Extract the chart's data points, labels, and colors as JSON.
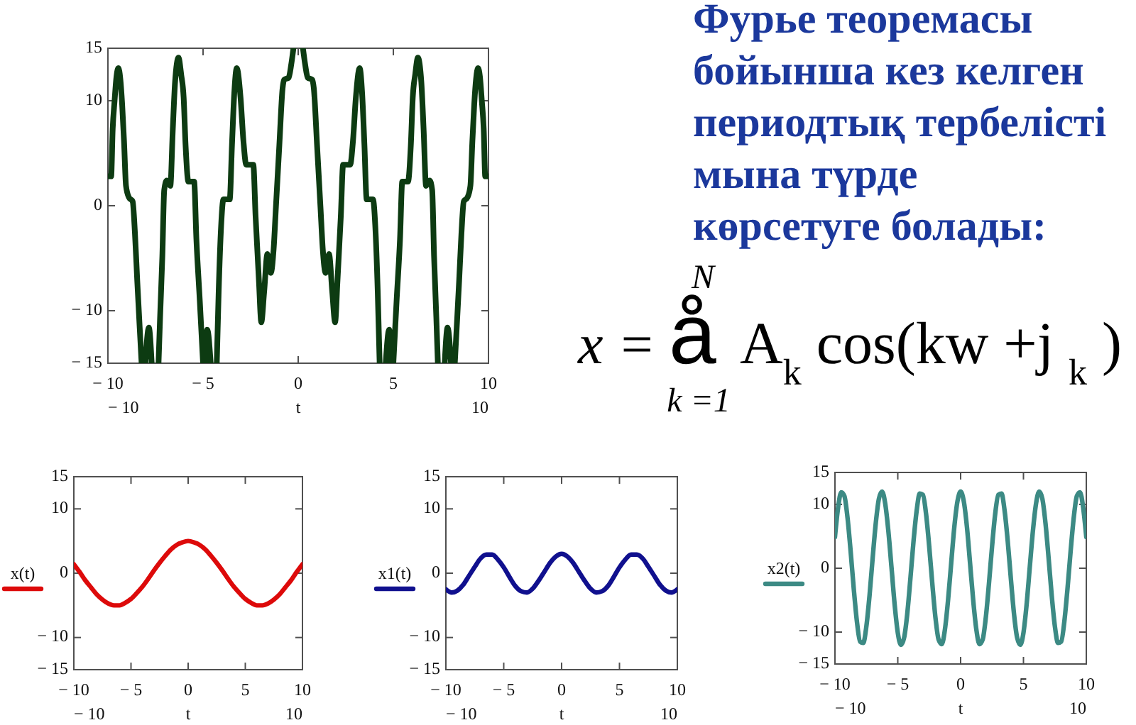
{
  "chart_data": [
    {
      "type": "line",
      "xlabel": "t",
      "xlim": [
        -10,
        10
      ],
      "xticks": [
        -10,
        -5,
        0,
        5,
        10
      ],
      "ylim": [
        -15,
        15
      ],
      "yticks": [
        -15,
        -10,
        0,
        10,
        15
      ],
      "annotations": [
        "− 10",
        "10"
      ],
      "x": [
        -10,
        -9.83,
        -9.75,
        -9.65,
        -9.55,
        -9.45,
        -9.35,
        -9.25,
        -9.15,
        -9.05,
        -8.9,
        -8.7,
        -8.58,
        -8.46,
        -8.33,
        -8.23,
        -8.13,
        -8.03,
        -7.85,
        -7.7,
        -7.5,
        -7.34,
        -7.26,
        -7.14,
        -7.04,
        -6.91,
        -6.72,
        -6.59,
        -6.47,
        -6.29,
        -6.15,
        -6.02,
        -5.92,
        -5.77,
        -5.47,
        -5.35,
        -5.17,
        -5,
        -4.95,
        -4.9,
        -4.78,
        -4.6,
        -4.45,
        -4.28,
        -4.18,
        -4.05,
        -3.93,
        -3.6,
        -3.48,
        -3.36,
        -3.23,
        -3.03,
        -2.88,
        -2.73,
        -2.36,
        -2.24,
        -2.06,
        -1.94,
        -1.79,
        -1.62,
        -1.44,
        -1.29,
        -1.17,
        -0.99,
        -0.82,
        -0.74,
        -0.5,
        -0.37,
        -0.25,
        0,
        0.25,
        0.37,
        0.5,
        0.74,
        0.82,
        0.99,
        1.17,
        1.29,
        1.44,
        1.62,
        1.79,
        1.94,
        2.06,
        2.24,
        2.36,
        2.73,
        2.88,
        3.03,
        3.23,
        3.36,
        3.48,
        3.6,
        3.93,
        4.05,
        4.18,
        4.28,
        4.45,
        4.6,
        4.78,
        4.9,
        4.95,
        5,
        5.17,
        5.35,
        5.47,
        5.77,
        5.92,
        6.02,
        6.15,
        6.29,
        6.47,
        6.59,
        6.72,
        6.91,
        7.04,
        7.14,
        7.26,
        7.34,
        7.5,
        7.7,
        7.85,
        8.03,
        8.13,
        8.23,
        8.33,
        8.46,
        8.58,
        8.7,
        8.9,
        9.05,
        9.15,
        9.25,
        9.35,
        9.45,
        9.55,
        9.65,
        9.75,
        9.83,
        10
      ],
      "series": [
        {
          "color": "#0d3b12",
          "values": [
            2.8,
            2.8,
            7.3,
            10.0,
            12.3,
            13.1,
            12.1,
            9.6,
            6.0,
            1.9,
            0.8,
            0.4,
            -2.6,
            -7.1,
            -11.6,
            -15,
            null,
            -15,
            -11.6,
            -15,
            null,
            -15,
            -10.7,
            -4.8,
            1.5,
            2.4,
            1.9,
            7.3,
            11.8,
            14.1,
            12.5,
            10.3,
            5.8,
            2.3,
            2.3,
            -3.2,
            -9.1,
            -15,
            null,
            -15,
            -11.8,
            -15,
            null,
            -15,
            -8.2,
            -1.9,
            0.6,
            0.6,
            5.8,
            10.7,
            13.1,
            10.3,
            6.2,
            3.9,
            3.9,
            -1.0,
            -7.3,
            -11.1,
            -8.2,
            -4.6,
            -6.4,
            -4.1,
            -0.1,
            5.8,
            11.2,
            12.0,
            12.2,
            13.4,
            15,
            null,
            15,
            13.4,
            12.2,
            12.0,
            11.2,
            5.8,
            -0.1,
            -4.1,
            -6.4,
            -4.6,
            -8.2,
            -11.1,
            -7.3,
            -1.0,
            3.9,
            3.9,
            6.2,
            10.3,
            13.1,
            10.7,
            5.8,
            0.6,
            0.6,
            -1.9,
            -8.2,
            -15,
            null,
            -15,
            -11.8,
            -15,
            null,
            -15,
            -9.1,
            -3.2,
            2.3,
            2.3,
            5.8,
            10.3,
            12.5,
            14.1,
            11.8,
            7.3,
            1.9,
            2.4,
            1.5,
            -4.8,
            -10.7,
            -15,
            null,
            -15,
            -11.6,
            -15,
            null,
            -15,
            -11.6,
            -7.1,
            -2.6,
            0.4,
            0.8,
            1.9,
            6.0,
            9.6,
            12.1,
            13.1,
            12.3,
            10.0,
            7.3,
            2.8,
            2.8
          ]
        }
      ]
    },
    {
      "type": "other",
      "title": "Фурье теоремасы бойынша кез келген периодтық тербелісті мына түрде көрсетуге болады:",
      "annotations": [
        "x =",
        "å",
        "N",
        "k =1",
        "A$_{k}$ cos(kw +j $_{k}$ )"
      ]
    },
    {
      "type": "line",
      "xlabel": "t",
      "xlim": [
        -10,
        10
      ],
      "xticks": [
        -10,
        -5,
        0,
        5,
        10
      ],
      "ylim": [
        -15,
        15
      ],
      "yticks": [
        -15,
        -10,
        0,
        10,
        15
      ],
      "annotations": [
        "− 10",
        "10"
      ],
      "legend": "left",
      "x": [
        -10,
        -9.5,
        -9,
        -8.5,
        -8,
        -7.5,
        -7,
        -6.5,
        -6,
        -5.5,
        -5,
        -4.5,
        -4,
        -3.5,
        -3,
        -2.5,
        -2,
        -1.5,
        -1,
        -0.5,
        0,
        0.5,
        1,
        1.5,
        2,
        2.5,
        3,
        3.5,
        4,
        4.5,
        5,
        5.5,
        6,
        6.5,
        7,
        7.5,
        8,
        8.5,
        9,
        9.5,
        10
      ],
      "series": [
        {
          "name": "x(t)",
          "color": "#dd0a0a",
          "values": [
            1.4,
            0.2,
            -1.1,
            -2.2,
            -3.3,
            -4.1,
            -4.7,
            -5.0,
            -5.0,
            -4.6,
            -4.0,
            -3.1,
            -2.1,
            -0.9,
            0.4,
            1.6,
            2.7,
            3.7,
            4.4,
            4.8,
            5,
            4.8,
            4.4,
            3.7,
            2.7,
            1.6,
            0.4,
            -0.9,
            -2.1,
            -3.1,
            -4.0,
            -4.6,
            -5.0,
            -5.0,
            -4.7,
            -4.1,
            -3.3,
            -2.2,
            -1.1,
            0.2,
            1.4
          ]
        }
      ]
    },
    {
      "type": "line",
      "xlabel": "t",
      "xlim": [
        -10,
        10
      ],
      "xticks": [
        -10,
        -5,
        0,
        5,
        10
      ],
      "ylim": [
        -15,
        15
      ],
      "yticks": [
        -15,
        -10,
        0,
        10,
        15
      ],
      "annotations": [
        "− 10",
        "10"
      ],
      "legend": "left",
      "x": [
        -10,
        -9.5,
        -9,
        -8.5,
        -8,
        -7.5,
        -7,
        -6.5,
        -6,
        -5.5,
        -5,
        -4.5,
        -4,
        -3.5,
        -3,
        -2.5,
        -2,
        -1.5,
        -1,
        -0.5,
        0,
        0.5,
        1,
        1.5,
        2,
        2.5,
        3,
        3.5,
        4,
        4.5,
        5,
        5.5,
        6,
        6.5,
        7,
        7.5,
        8,
        8.5,
        9,
        9.5,
        10
      ],
      "series": [
        {
          "name": "x1(t)",
          "color": "#10108e",
          "values": [
            -2.5,
            -3.0,
            -2.7,
            -1.8,
            -0.4,
            1.0,
            2.3,
            2.9,
            2.9,
            2.1,
            0.9,
            -0.6,
            -2.0,
            -2.8,
            -3.0,
            -2.4,
            -1.2,
            0.2,
            1.6,
            2.6,
            3,
            2.6,
            1.6,
            0.2,
            -1.2,
            -2.4,
            -3.0,
            -2.8,
            -2.0,
            -0.6,
            0.9,
            2.1,
            2.9,
            2.9,
            2.3,
            1.0,
            -0.4,
            -1.8,
            -2.7,
            -3.0,
            -2.5
          ]
        }
      ]
    },
    {
      "type": "line",
      "xlabel": "t",
      "xlim": [
        -10,
        10
      ],
      "xticks": [
        -10,
        -5,
        0,
        5,
        10
      ],
      "ylim": [
        -15,
        15
      ],
      "yticks": [
        -15,
        -10,
        0,
        10,
        15
      ],
      "annotations": [
        "− 10",
        "10"
      ],
      "legend": "left",
      "x": [
        -10,
        -9.75,
        -9.5,
        -9.25,
        -9,
        -8.75,
        -8.5,
        -8.25,
        -8,
        -7.75,
        -7.5,
        -7.25,
        -7,
        -6.75,
        -6.5,
        -6.25,
        -6,
        -5.75,
        -5.5,
        -5.25,
        -5,
        -4.75,
        -4.5,
        -4.25,
        -4,
        -3.75,
        -3.5,
        -3.25,
        -3,
        -2.75,
        -2.5,
        -2.25,
        -2,
        -1.75,
        -1.5,
        -1.25,
        -1,
        -0.75,
        -0.5,
        -0.25,
        0,
        0.25,
        0.5,
        0.75,
        1,
        1.25,
        1.5,
        1.75,
        2,
        2.25,
        2.5,
        2.75,
        3,
        3.25,
        3.5,
        3.75,
        4,
        4.25,
        4.5,
        4.75,
        5,
        5.25,
        5.5,
        5.75,
        6,
        6.25,
        6.5,
        6.75,
        7,
        7.25,
        7.5,
        7.75,
        8,
        8.25,
        8.5,
        8.75,
        9,
        9.25,
        9.5,
        9.75,
        10
      ],
      "series": [
        {
          "name": "x2(t)",
          "color": "#3c8a84",
          "values": [
            4.9,
            9.5,
            11.9,
            11.3,
            7.9,
            2.6,
            -3.3,
            -8.4,
            -11.5,
            -11.7,
            -9.1,
            -4.3,
            1.6,
            7.1,
            10.9,
            12.0,
            10.1,
            5.8,
            0.1,
            -5.7,
            -10.1,
            -12.0,
            -10.9,
            -7.2,
            -1.7,
            4.2,
            9.0,
            11.7,
            11.5,
            8.5,
            3.4,
            -2.5,
            -7.8,
            -11.2,
            -11.9,
            -9.6,
            -5.0,
            0.8,
            6.5,
            10.5,
            12,
            10.5,
            6.5,
            0.8,
            -5.0,
            -9.6,
            -11.9,
            -11.2,
            -7.8,
            -2.5,
            3.4,
            8.5,
            11.5,
            11.7,
            9.0,
            4.2,
            -1.7,
            -7.2,
            -10.9,
            -12.0,
            -10.1,
            -5.7,
            0.1,
            5.8,
            10.1,
            12.0,
            10.9,
            7.1,
            1.6,
            -4.3,
            -9.1,
            -11.7,
            -11.5,
            -8.4,
            -3.3,
            2.6,
            7.9,
            11.3,
            11.9,
            9.5,
            4.9
          ]
        }
      ]
    }
  ]
}
